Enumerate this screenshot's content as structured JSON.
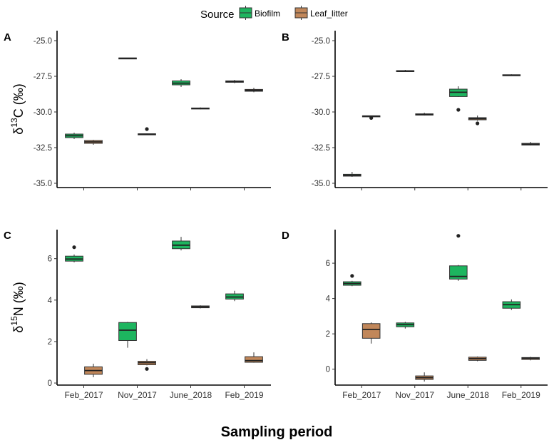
{
  "legend": {
    "title": "Source",
    "placement": "top",
    "entries": [
      {
        "name": "Biofilm",
        "color": "#1db55f"
      },
      {
        "name": "Leaf_litter",
        "color": "#c1875a"
      }
    ]
  },
  "x_title": "Sampling period",
  "chart_data": [
    {
      "type": "box",
      "panel": "A",
      "ylabel": "δ13C (‰)",
      "ylim": [
        -35.3,
        -24.3
      ],
      "yticks": [
        -35.0,
        -32.5,
        -30.0,
        -27.5,
        -25.0
      ],
      "ytick_labels": [
        "-35.0",
        "-32.5",
        "-30.0",
        "-27.5",
        "-25.0"
      ],
      "categories": [
        "Feb_2017",
        "Nov_2017",
        "June_2018",
        "Feb_2019"
      ],
      "tick_labels_shown": false,
      "series": [
        {
          "name": "Biofilm",
          "boxes": [
            {
              "min": -31.9,
              "q1": -31.8,
              "median": -31.67,
              "q3": -31.55,
              "max": -31.45,
              "outliers": []
            },
            {
              "min": -26.28,
              "q1": -26.27,
              "median": -26.24,
              "q3": -26.21,
              "max": -26.2,
              "outliers": []
            },
            {
              "min": -28.25,
              "q1": -28.1,
              "median": -27.98,
              "q3": -27.82,
              "max": -27.7,
              "outliers": []
            },
            {
              "min": -27.98,
              "q1": -27.92,
              "median": -27.87,
              "q3": -27.82,
              "max": -27.75,
              "outliers": []
            }
          ]
        },
        {
          "name": "Leaf_litter",
          "boxes": [
            {
              "min": -32.3,
              "q1": -32.2,
              "median": -32.1,
              "q3": -32.0,
              "max": -31.95,
              "outliers": []
            },
            {
              "min": -31.62,
              "q1": -31.6,
              "median": -31.56,
              "q3": -31.53,
              "max": -31.5,
              "outliers": [
                -31.2
              ]
            },
            {
              "min": -29.82,
              "q1": -29.79,
              "median": -29.75,
              "q3": -29.72,
              "max": -29.68,
              "outliers": []
            },
            {
              "min": -28.62,
              "q1": -28.55,
              "median": -28.48,
              "q3": -28.42,
              "max": -28.3,
              "outliers": []
            }
          ]
        }
      ]
    },
    {
      "type": "box",
      "panel": "B",
      "ylabel": "",
      "ylim": [
        -35.3,
        -24.3
      ],
      "yticks": [
        -35.0,
        -32.5,
        -30.0,
        -27.5,
        -25.0
      ],
      "ytick_labels": [
        "-35.0",
        "-32.5",
        "-30.0",
        "-27.5",
        "-25.0"
      ],
      "categories": [
        "Feb_2017",
        "Nov_2017",
        "June_2018",
        "Feb_2019"
      ],
      "tick_labels_shown": false,
      "series": [
        {
          "name": "Biofilm",
          "boxes": [
            {
              "min": -34.55,
              "q1": -34.5,
              "median": -34.43,
              "q3": -34.37,
              "max": -34.2,
              "outliers": []
            },
            {
              "min": -27.18,
              "q1": -27.16,
              "median": -27.13,
              "q3": -27.1,
              "max": -27.05,
              "outliers": []
            },
            {
              "min": -28.95,
              "q1": -28.92,
              "median": -28.62,
              "q3": -28.4,
              "max": -28.2,
              "outliers": [
                -29.85
              ]
            },
            {
              "min": -27.47,
              "q1": -27.45,
              "median": -27.42,
              "q3": -27.39,
              "max": -27.36,
              "outliers": []
            }
          ]
        },
        {
          "name": "Leaf_litter",
          "boxes": [
            {
              "min": -30.33,
              "q1": -30.31,
              "median": -30.29,
              "q3": -30.27,
              "max": -30.25,
              "outliers": [
                -30.42
              ]
            },
            {
              "min": -30.25,
              "q1": -30.22,
              "median": -30.18,
              "q3": -30.13,
              "max": -30.05,
              "outliers": []
            },
            {
              "min": -30.62,
              "q1": -30.55,
              "median": -30.47,
              "q3": -30.4,
              "max": -30.25,
              "outliers": [
                -30.8
              ]
            },
            {
              "min": -32.35,
              "q1": -32.32,
              "median": -32.27,
              "q3": -32.2,
              "max": -32.1,
              "outliers": []
            }
          ]
        }
      ]
    },
    {
      "type": "box",
      "panel": "C",
      "ylabel": "δ15N (‰)",
      "ylim": [
        -0.1,
        7.4
      ],
      "yticks": [
        0,
        2,
        4,
        6
      ],
      "ytick_labels": [
        "0",
        "2",
        "4",
        "6"
      ],
      "categories": [
        "Feb_2017",
        "Nov_2017",
        "June_2018",
        "Feb_2019"
      ],
      "tick_labels_shown": true,
      "series": [
        {
          "name": "Biofilm",
          "boxes": [
            {
              "min": 5.82,
              "q1": 5.88,
              "median": 5.98,
              "q3": 6.12,
              "max": 6.2,
              "outliers": [
                6.55
              ]
            },
            {
              "min": 1.7,
              "q1": 2.05,
              "median": 2.55,
              "q3": 2.92,
              "max": 2.95,
              "outliers": []
            },
            {
              "min": 6.4,
              "q1": 6.48,
              "median": 6.65,
              "q3": 6.85,
              "max": 7.05,
              "outliers": []
            },
            {
              "min": 3.95,
              "q1": 4.05,
              "median": 4.15,
              "q3": 4.3,
              "max": 4.45,
              "outliers": []
            }
          ]
        },
        {
          "name": "Leaf_litter",
          "boxes": [
            {
              "min": 0.28,
              "q1": 0.42,
              "median": 0.6,
              "q3": 0.78,
              "max": 0.93,
              "outliers": []
            },
            {
              "min": 0.85,
              "q1": 0.88,
              "median": 0.98,
              "q3": 1.05,
              "max": 1.15,
              "outliers": [
                0.68
              ]
            },
            {
              "min": 3.6,
              "q1": 3.63,
              "median": 3.67,
              "q3": 3.72,
              "max": 3.75,
              "outliers": []
            },
            {
              "min": 0.98,
              "q1": 1.0,
              "median": 1.08,
              "q3": 1.27,
              "max": 1.48,
              "outliers": []
            }
          ]
        }
      ]
    },
    {
      "type": "box",
      "panel": "D",
      "ylabel": "",
      "ylim": [
        -0.9,
        7.9
      ],
      "yticks": [
        0,
        2,
        4,
        6
      ],
      "ytick_labels": [
        "0",
        "2",
        "4",
        "6"
      ],
      "categories": [
        "Feb_2017",
        "Nov_2017",
        "June_2018",
        "Feb_2019"
      ],
      "tick_labels_shown": true,
      "series": [
        {
          "name": "Biofilm",
          "boxes": [
            {
              "min": 4.7,
              "q1": 4.75,
              "median": 4.85,
              "q3": 4.95,
              "max": 5.0,
              "outliers": [
                5.28
              ]
            },
            {
              "min": 2.3,
              "q1": 2.4,
              "median": 2.52,
              "q3": 2.62,
              "max": 2.68,
              "outliers": []
            },
            {
              "min": 5.0,
              "q1": 5.1,
              "median": 5.25,
              "q3": 5.85,
              "max": 5.9,
              "outliers": [
                7.55
              ]
            },
            {
              "min": 3.35,
              "q1": 3.45,
              "median": 3.65,
              "q3": 3.82,
              "max": 3.95,
              "outliers": []
            }
          ]
        },
        {
          "name": "Leaf_litter",
          "boxes": [
            {
              "min": 1.45,
              "q1": 1.75,
              "median": 2.25,
              "q3": 2.58,
              "max": 2.65,
              "outliers": []
            },
            {
              "min": -0.7,
              "q1": -0.58,
              "median": -0.48,
              "q3": -0.38,
              "max": -0.18,
              "outliers": []
            },
            {
              "min": 0.45,
              "q1": 0.5,
              "median": 0.6,
              "q3": 0.68,
              "max": 0.72,
              "outliers": []
            },
            {
              "min": 0.5,
              "q1": 0.55,
              "median": 0.62,
              "q3": 0.66,
              "max": 0.7,
              "outliers": []
            }
          ]
        }
      ]
    }
  ]
}
